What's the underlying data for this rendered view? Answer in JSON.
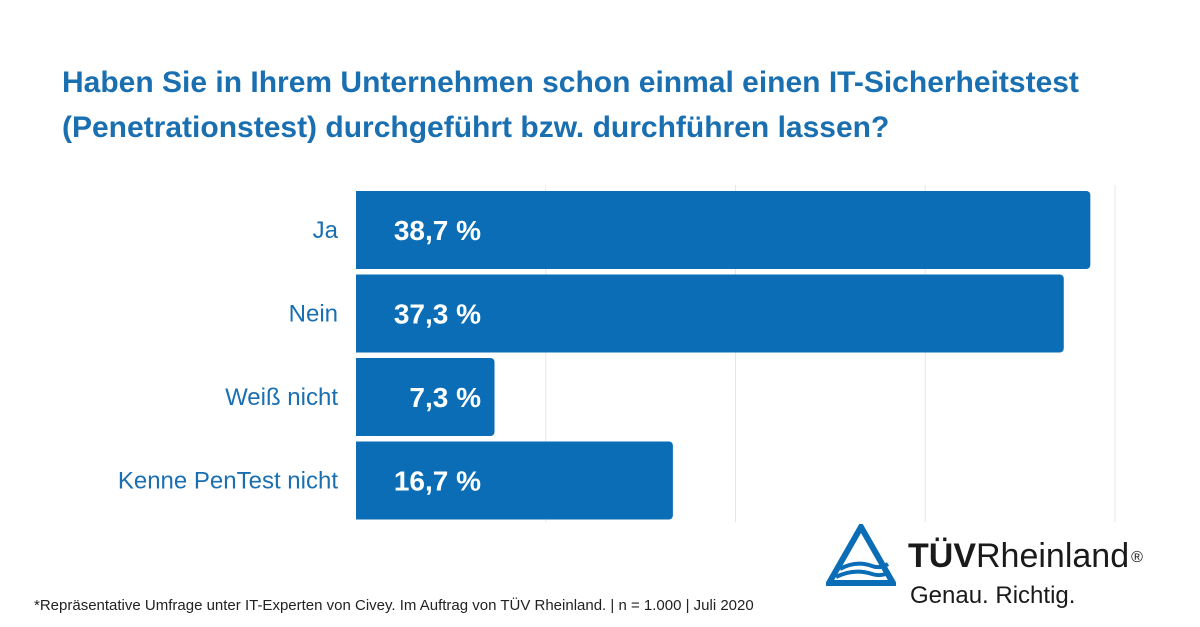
{
  "chart_data": {
    "type": "bar",
    "orientation": "horizontal",
    "title": "Haben Sie in Ihrem Unternehmen schon einmal einen IT-Sicherheitstest (Penetrationstest) durchgeführt bzw. durchführen lassen?",
    "title_lines": [
      "Haben Sie in Ihrem Unternehmen schon einmal einen IT-Sicherheitstest",
      "(Penetrationstest) durchgeführt bzw. durchführen lassen?"
    ],
    "categories": [
      "Ja",
      "Nein",
      "Weiß nicht",
      "Kenne PenTest nicht"
    ],
    "values": [
      38.7,
      37.3,
      7.3,
      16.7
    ],
    "value_labels": [
      "38,7 %",
      "37,3 %",
      "7,3 %",
      "16,7 %"
    ],
    "xlim": [
      0,
      40
    ],
    "grid": true,
    "bar_color": "#0a6db5",
    "grid_color": "#e3e7ec"
  },
  "footnote": "*Repräsentative Umfrage unter IT-Experten von Civey. Im Auftrag von TÜV Rheinland. | n = 1.000 | Juli 2020",
  "logo": {
    "brand_bold": "TÜV",
    "brand_regular": "Rheinland",
    "registered": "®",
    "tagline": "Genau. Richtig.",
    "mark_color": "#0a6db5",
    "text_color": "#1a1a1a"
  }
}
